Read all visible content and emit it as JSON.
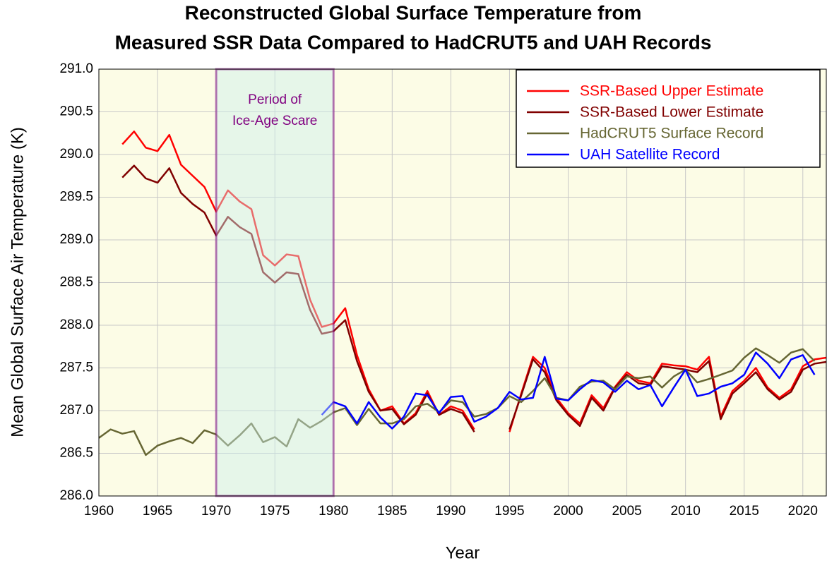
{
  "chart_data": {
    "type": "line",
    "title": [
      "Reconstructed Global Surface Temperature from",
      "Measured SSR Data Compared to HadCRUT5 and UAH Records"
    ],
    "x_label": "Year",
    "y_label": "Mean Global Surface Air Temperature (K)",
    "x": [
      1960,
      1961,
      1962,
      1963,
      1964,
      1965,
      1966,
      1967,
      1968,
      1969,
      1970,
      1971,
      1972,
      1973,
      1974,
      1975,
      1976,
      1977,
      1978,
      1979,
      1980,
      1981,
      1982,
      1983,
      1984,
      1985,
      1986,
      1987,
      1988,
      1989,
      1990,
      1991,
      1992,
      1993,
      1994,
      1995,
      1996,
      1997,
      1998,
      1999,
      2000,
      2001,
      2002,
      2003,
      2004,
      2005,
      2006,
      2007,
      2008,
      2009,
      2010,
      2011,
      2012,
      2013,
      2014,
      2015,
      2016,
      2017,
      2018,
      2019,
      2020,
      2021,
      2022
    ],
    "series": [
      {
        "name": "SSR-Based Upper Estimate",
        "color": "#ff0000",
        "values": [
          null,
          null,
          290.12,
          290.27,
          290.08,
          290.04,
          290.23,
          289.88,
          289.75,
          289.62,
          289.33,
          289.58,
          289.45,
          289.36,
          288.82,
          288.7,
          288.83,
          288.81,
          288.3,
          287.98,
          288.02,
          288.2,
          287.65,
          287.25,
          287.0,
          287.05,
          286.85,
          286.97,
          287.23,
          286.95,
          287.05,
          287.0,
          286.78,
          null,
          null,
          286.75,
          287.2,
          287.63,
          287.5,
          287.15,
          286.97,
          286.85,
          287.18,
          287.03,
          287.28,
          287.45,
          287.35,
          287.32,
          287.55,
          287.53,
          287.52,
          287.48,
          287.63,
          286.93,
          287.23,
          287.35,
          287.5,
          287.27,
          287.15,
          287.25,
          287.52,
          287.6,
          287.62
        ]
      },
      {
        "name": "SSR-Based Lower Estimate",
        "color": "#800000",
        "values": [
          null,
          null,
          289.73,
          289.87,
          289.72,
          289.67,
          289.84,
          289.55,
          289.42,
          289.32,
          289.05,
          289.27,
          289.15,
          289.07,
          288.62,
          288.5,
          288.62,
          288.6,
          288.18,
          287.9,
          287.93,
          288.06,
          287.58,
          287.22,
          287.0,
          287.02,
          286.84,
          286.95,
          287.2,
          286.95,
          287.02,
          286.97,
          286.75,
          null,
          null,
          286.78,
          287.18,
          287.6,
          287.45,
          287.12,
          286.95,
          286.82,
          287.15,
          287.0,
          287.27,
          287.42,
          287.32,
          287.3,
          287.52,
          287.5,
          287.48,
          287.45,
          287.58,
          286.9,
          287.2,
          287.32,
          287.45,
          287.25,
          287.13,
          287.22,
          287.48,
          287.55,
          287.57
        ]
      },
      {
        "name": "HadCRUT5 Surface Record",
        "color": "#666633",
        "values": [
          286.68,
          286.78,
          286.73,
          286.76,
          286.48,
          286.59,
          286.64,
          286.68,
          286.62,
          286.77,
          286.72,
          286.59,
          286.71,
          286.85,
          286.63,
          286.69,
          286.58,
          286.9,
          286.8,
          286.88,
          286.98,
          287.03,
          286.83,
          287.02,
          286.85,
          286.85,
          286.9,
          287.05,
          287.08,
          286.98,
          287.12,
          287.1,
          286.93,
          286.96,
          287.03,
          287.17,
          287.1,
          287.23,
          287.38,
          287.15,
          287.12,
          287.28,
          287.34,
          287.35,
          287.25,
          287.4,
          287.38,
          287.4,
          287.27,
          287.4,
          287.48,
          287.33,
          287.37,
          287.42,
          287.47,
          287.62,
          287.73,
          287.65,
          287.56,
          287.68,
          287.72,
          287.58,
          null
        ]
      },
      {
        "name": "UAH Satellite Record",
        "color": "#0000ff",
        "values": [
          null,
          null,
          null,
          null,
          null,
          null,
          null,
          null,
          null,
          null,
          null,
          null,
          null,
          null,
          null,
          null,
          null,
          null,
          null,
          286.95,
          287.1,
          287.05,
          286.85,
          287.1,
          286.92,
          286.79,
          286.93,
          287.2,
          287.18,
          286.97,
          287.16,
          287.17,
          286.87,
          286.93,
          287.03,
          287.22,
          287.13,
          287.15,
          287.63,
          287.14,
          287.12,
          287.25,
          287.36,
          287.33,
          287.22,
          287.35,
          287.25,
          287.3,
          287.05,
          287.27,
          287.48,
          287.17,
          287.2,
          287.28,
          287.32,
          287.42,
          287.68,
          287.55,
          287.38,
          287.6,
          287.65,
          287.42,
          null
        ]
      }
    ],
    "shade": {
      "x": [
        1970,
        1980
      ],
      "label": [
        "Period of",
        "Ice-Age Scare"
      ],
      "color": "#800080"
    },
    "xlim": [
      1960,
      2022
    ],
    "xticks": [
      1960,
      1965,
      1970,
      1975,
      1980,
      1985,
      1990,
      1995,
      2000,
      2005,
      2010,
      2015,
      2020
    ],
    "ylim": [
      286,
      291
    ],
    "yticks": [
      {
        "value": 286,
        "label": "286.0"
      },
      286.5,
      {
        "value": 287,
        "label": "287.0"
      },
      287.5,
      {
        "value": 288,
        "label": "288.0"
      },
      288.5,
      {
        "value": 289,
        "label": "289.0"
      },
      289.5,
      {
        "value": 290,
        "label": "290.0"
      },
      290.5,
      {
        "value": 291,
        "label": "291.0"
      }
    ],
    "grid": true,
    "legend": "top-right"
  }
}
